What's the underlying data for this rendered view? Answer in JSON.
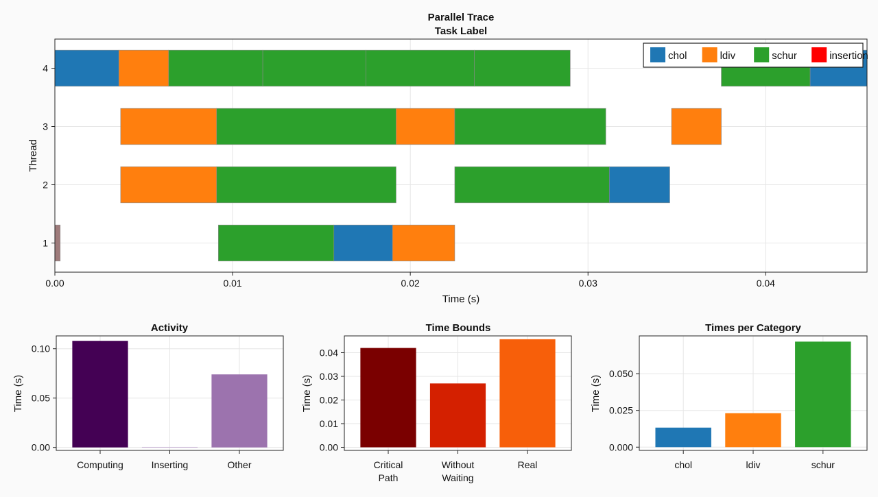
{
  "chart_data": [
    {
      "type": "gantt",
      "title": "Parallel Trace",
      "subtitle": "Task Label",
      "xlabel": "Time (s)",
      "ylabel": "Thread",
      "xlim": [
        0,
        0.0457
      ],
      "ylim": [
        0.5,
        4.5
      ],
      "xticks": [
        "0.00",
        "0.01",
        "0.02",
        "0.03",
        "0.04"
      ],
      "xtick_values": [
        0,
        0.01,
        0.02,
        0.03,
        0.04
      ],
      "yticks": [
        "1",
        "2",
        "3",
        "4"
      ],
      "grid": true,
      "legend": {
        "placement": "top-right",
        "entries": [
          {
            "name": "chol",
            "color": "#1f77b4"
          },
          {
            "name": "ldiv",
            "color": "#ff7f0e"
          },
          {
            "name": "schur",
            "color": "#2ca02c"
          },
          {
            "name": "insertion",
            "color": "#ff0000"
          }
        ]
      },
      "tasks": [
        {
          "thread": 4,
          "start": 0.0,
          "end": 0.0036,
          "category": "chol"
        },
        {
          "thread": 4,
          "start": 0.0036,
          "end": 0.0064,
          "category": "ldiv"
        },
        {
          "thread": 4,
          "start": 0.0064,
          "end": 0.0117,
          "category": "schur"
        },
        {
          "thread": 4,
          "start": 0.0117,
          "end": 0.0175,
          "category": "schur"
        },
        {
          "thread": 4,
          "start": 0.0175,
          "end": 0.0236,
          "category": "schur"
        },
        {
          "thread": 4,
          "start": 0.0236,
          "end": 0.029,
          "category": "schur"
        },
        {
          "thread": 4,
          "start": 0.0375,
          "end": 0.0425,
          "category": "schur"
        },
        {
          "thread": 4,
          "start": 0.0425,
          "end": 0.0457,
          "category": "chol"
        },
        {
          "thread": 3,
          "start": 0.0037,
          "end": 0.0091,
          "category": "ldiv"
        },
        {
          "thread": 3,
          "start": 0.0091,
          "end": 0.0192,
          "category": "schur"
        },
        {
          "thread": 3,
          "start": 0.0192,
          "end": 0.0225,
          "category": "ldiv"
        },
        {
          "thread": 3,
          "start": 0.0225,
          "end": 0.031,
          "category": "schur"
        },
        {
          "thread": 3,
          "start": 0.0347,
          "end": 0.0375,
          "category": "ldiv"
        },
        {
          "thread": 2,
          "start": 0.0037,
          "end": 0.0091,
          "category": "ldiv"
        },
        {
          "thread": 2,
          "start": 0.0091,
          "end": 0.0192,
          "category": "schur"
        },
        {
          "thread": 2,
          "start": 0.0225,
          "end": 0.0312,
          "category": "schur"
        },
        {
          "thread": 2,
          "start": 0.0312,
          "end": 0.0346,
          "category": "chol"
        },
        {
          "thread": 1,
          "start": 0.0,
          "end": 0.0003,
          "category": "other",
          "color": "#9e7b7b"
        },
        {
          "thread": 1,
          "start": 0.0092,
          "end": 0.0157,
          "category": "schur"
        },
        {
          "thread": 1,
          "start": 0.0157,
          "end": 0.019,
          "category": "chol"
        },
        {
          "thread": 1,
          "start": 0.019,
          "end": 0.0225,
          "category": "ldiv"
        }
      ]
    },
    {
      "type": "bar",
      "title": "Activity",
      "xlabel": "",
      "ylabel": "Time (s)",
      "ylim": [
        -0.003,
        0.113
      ],
      "yticks": [
        "0.00",
        "0.05",
        "0.10"
      ],
      "ytick_values": [
        0,
        0.05,
        0.1
      ],
      "categories": [
        "Computing",
        "Inserting",
        "Other"
      ],
      "values": [
        0.108,
        0.0005,
        0.074
      ],
      "colors": [
        "#440154",
        "#c8b4d4",
        "#9c73ae"
      ]
    },
    {
      "type": "bar",
      "title": "Time Bounds",
      "xlabel": "",
      "ylabel": "Time (s)",
      "ylim": [
        -0.0013,
        0.0471
      ],
      "yticks": [
        "0.00",
        "0.01",
        "0.02",
        "0.03",
        "0.04"
      ],
      "ytick_values": [
        0,
        0.01,
        0.02,
        0.03,
        0.04
      ],
      "categories": [
        "Critical\nPath",
        "Without\nWaiting",
        "Real"
      ],
      "values": [
        0.042,
        0.027,
        0.0457
      ],
      "colors": [
        "#7a0000",
        "#d42000",
        "#f75f0a"
      ]
    },
    {
      "type": "bar",
      "title": "Times per Category",
      "xlabel": "",
      "ylabel": "Time (s)",
      "ylim": [
        -0.0022,
        0.0757
      ],
      "yticks": [
        "0.000",
        "0.025",
        "0.050"
      ],
      "ytick_values": [
        0,
        0.025,
        0.05
      ],
      "categories": [
        "chol",
        "ldiv",
        "schur"
      ],
      "values": [
        0.0133,
        0.0231,
        0.0718
      ],
      "colors": [
        "#1f77b4",
        "#ff7f0e",
        "#2ca02c"
      ]
    }
  ]
}
